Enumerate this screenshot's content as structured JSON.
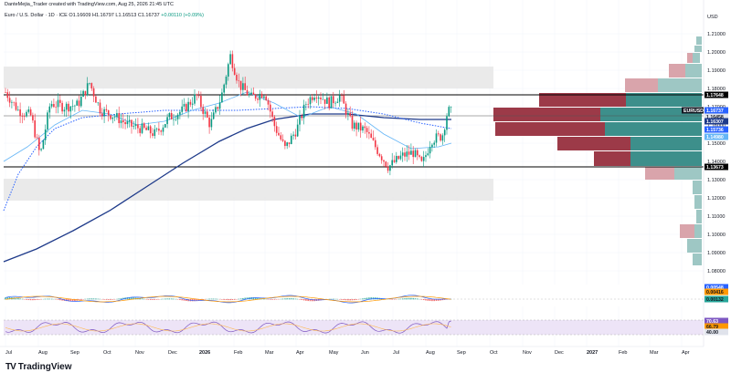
{
  "header": {
    "credit": "DanteMejia_Trader created with TradingView.com, Aug 25, 2026 21:45 UTC",
    "symbol": "Euro / U.S. Dollar · 1D · ICE",
    "ohlc": "O1.16609 H1.16797 L1.16513 C1.16737",
    "change": "+0.00110 (+0.09%)"
  },
  "brand": {
    "name": "TradingView",
    "logo": "tradingview-logo-icon"
  },
  "axis": {
    "currency": "USD",
    "price_ticks": [
      "1.21000",
      "1.20000",
      "1.19000",
      "1.18000",
      "1.17000",
      "1.16000",
      "1.15000",
      "1.14000",
      "1.13000",
      "1.12000",
      "1.11000",
      "1.10000",
      "1.09000",
      "1.08000"
    ],
    "time_ticks": [
      "Jul",
      "Aug",
      "Sep",
      "Oct",
      "Nov",
      "Dec",
      "2026",
      "Feb",
      "Mar",
      "Apr",
      "May",
      "Jun",
      "Jul",
      "Aug",
      "Sep",
      "Oct",
      "Nov",
      "Dec",
      "2027",
      "Feb",
      "Mar",
      "Apr"
    ]
  },
  "price_labels": [
    {
      "text": "1.17648",
      "kind": "black"
    },
    {
      "text": "EURUSD",
      "kind": "ticker"
    },
    {
      "text": "1.16737",
      "kind": "blue"
    },
    {
      "text": "1.16458",
      "kind": "gray"
    },
    {
      "text": "1.16307",
      "kind": "navy"
    },
    {
      "text": "1.15736",
      "kind": "blue"
    },
    {
      "text": "1.14980",
      "kind": "lightblue"
    },
    {
      "text": "1.13673",
      "kind": "black"
    }
  ],
  "macd_labels": [
    {
      "text": "0.00548",
      "kind": "blue"
    },
    {
      "text": "0.00416",
      "kind": "orange"
    },
    {
      "text": "0.00132",
      "kind": "teal"
    }
  ],
  "rsi_labels": [
    {
      "text": "70.63",
      "kind": "purple"
    },
    {
      "text": "66.79",
      "kind": "orange"
    },
    {
      "text": "40.00",
      "kind": "gray"
    }
  ],
  "colors": {
    "up": "#089981",
    "down": "#f23645",
    "navy_ma": "#1e3a8a",
    "blue_ma": "#2962ff",
    "light_ma": "#64b5f6",
    "vp_up": "#3d8f8b",
    "vp_down": "#9c3a48",
    "vp_up_light": "#9ec7c4",
    "vp_down_light": "#d9a4ab"
  }
}
